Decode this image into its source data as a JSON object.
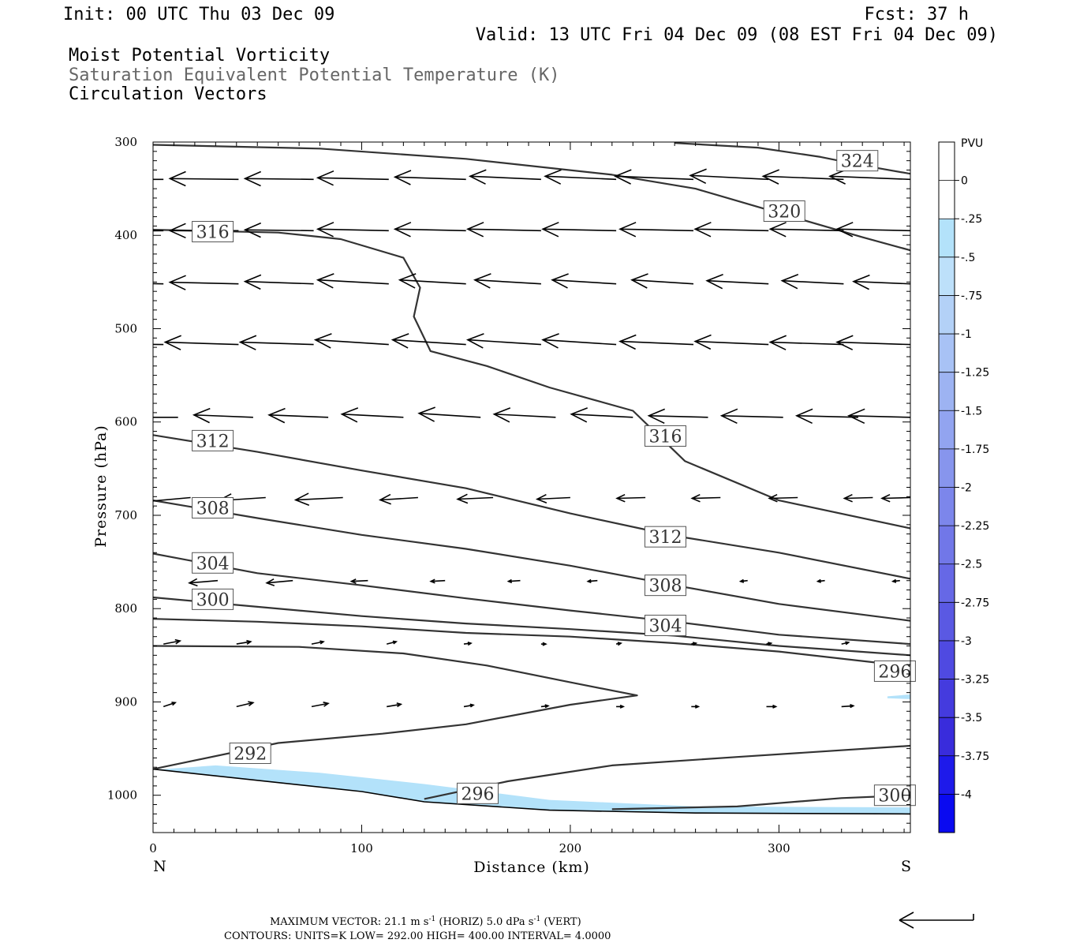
{
  "header": {
    "init": "Init: 00 UTC Thu 03 Dec 09",
    "fcst": "Fcst:   37 h",
    "valid": "Valid: 13 UTC Fri 04 Dec 09 (08 EST Fri 04 Dec 09)",
    "field1": "Moist Potential Vorticity",
    "field2": "Saturation Equivalent Potential Temperature (K)",
    "field3": "Circulation Vectors"
  },
  "footer": {
    "line1_prefix": "MAXIMUM VECTOR:  21.1 m s",
    "line1_mid": " (HORIZ)          5.0 dPa s",
    "line1_end": " (VERT)",
    "exp": "-1",
    "line2": "CONTOURS:  UNITS=K  LOW=   292.00        HIGH=   400.00        INTERVAL=     4.0000"
  },
  "colors": {
    "contour": "#333333",
    "vector": "#000000",
    "pv_fill_light": "#b3e2fa",
    "pv_fill_mid": "#a8bff5"
  },
  "chart_data": {
    "type": "cross-section",
    "xlabel": "Distance (km)",
    "ylabel": "Pressure (hPa)",
    "xlim": [
      0,
      363
    ],
    "ylim": [
      300,
      1040
    ],
    "y_reversed": true,
    "x_ticks": [
      0,
      100,
      200,
      300
    ],
    "y_ticks": [
      300,
      400,
      500,
      600,
      700,
      800,
      900,
      1000
    ],
    "x_end_labels": {
      "left": "N",
      "right": "S"
    },
    "colorbar": {
      "title": "PVU",
      "levels": [
        "0",
        "-.25",
        "-.5",
        "-.75",
        "-1",
        "-1.25",
        "-1.5",
        "-1.75",
        "-2",
        "-2.25",
        "-2.5",
        "-2.75",
        "-3",
        "-3.25",
        "-3.5",
        "-3.75",
        "-4"
      ],
      "colors": [
        "#ffffff",
        "#ffffff",
        "#b3e2fa",
        "#bde0fa",
        "#b3d1f7",
        "#a8c2f5",
        "#9db3f2",
        "#92a4f0",
        "#8795ed",
        "#7c86eb",
        "#7177e8",
        "#6668e6",
        "#5a59e3",
        "#4f4ae1",
        "#443bde",
        "#392cdc",
        "#1e1aea",
        "#0a0af0"
      ]
    },
    "ground": [
      [
        0,
        972
      ],
      [
        100,
        996
      ],
      [
        130,
        1007
      ],
      [
        190,
        1016
      ],
      [
        260,
        1019
      ],
      [
        363,
        1020
      ]
    ],
    "pv_region": [
      [
        5,
        972
      ],
      [
        30,
        968
      ],
      [
        80,
        976
      ],
      [
        130,
        988
      ],
      [
        190,
        1005
      ],
      [
        260,
        1012
      ],
      [
        363,
        1013
      ],
      [
        363,
        1020
      ],
      [
        260,
        1019
      ],
      [
        190,
        1016
      ],
      [
        130,
        1007
      ],
      [
        100,
        996
      ],
      [
        0,
        972
      ]
    ],
    "pv_region_small": [
      [
        352,
        894
      ],
      [
        363,
        892
      ],
      [
        363,
        897
      ],
      [
        352,
        896
      ]
    ],
    "contours": [
      {
        "value": "324",
        "points": [
          [
            250,
            301
          ],
          [
            290,
            306
          ],
          [
            320,
            316
          ],
          [
            340,
            325
          ],
          [
            363,
            334
          ]
        ]
      },
      {
        "value": "320",
        "points": [
          [
            0,
            303
          ],
          [
            80,
            307
          ],
          [
            150,
            318
          ],
          [
            220,
            335
          ],
          [
            260,
            350
          ],
          [
            300,
            376
          ],
          [
            340,
            402
          ],
          [
            363,
            416
          ]
        ]
      },
      {
        "value": "316",
        "points": [
          [
            0,
            394
          ],
          [
            60,
            397
          ],
          [
            90,
            404
          ],
          [
            120,
            424
          ],
          [
            128,
            456
          ],
          [
            125,
            487
          ],
          [
            133,
            524
          ],
          [
            160,
            540
          ],
          [
            190,
            563
          ],
          [
            230,
            588
          ],
          [
            255,
            642
          ],
          [
            300,
            684
          ],
          [
            363,
            714
          ]
        ]
      },
      {
        "value": "312",
        "points": [
          [
            0,
            614
          ],
          [
            50,
            632
          ],
          [
            100,
            652
          ],
          [
            150,
            671
          ],
          [
            200,
            698
          ],
          [
            250,
            722
          ],
          [
            300,
            740
          ],
          [
            363,
            768
          ]
        ]
      },
      {
        "value": "308",
        "points": [
          [
            0,
            684
          ],
          [
            50,
            703
          ],
          [
            100,
            721
          ],
          [
            150,
            736
          ],
          [
            200,
            754
          ],
          [
            250,
            775
          ],
          [
            300,
            795
          ],
          [
            363,
            813
          ]
        ]
      },
      {
        "value": "304",
        "points": [
          [
            0,
            741
          ],
          [
            50,
            762
          ],
          [
            100,
            775
          ],
          [
            150,
            789
          ],
          [
            200,
            802
          ],
          [
            250,
            814
          ],
          [
            300,
            828
          ],
          [
            363,
            838
          ]
        ]
      },
      {
        "value": "300",
        "points": [
          [
            0,
            788
          ],
          [
            50,
            798
          ],
          [
            100,
            808
          ],
          [
            150,
            816
          ],
          [
            200,
            822
          ],
          [
            250,
            829
          ],
          [
            300,
            840
          ],
          [
            363,
            850
          ]
        ]
      },
      {
        "value": "296a",
        "points": [
          [
            0,
            811
          ],
          [
            50,
            814
          ],
          [
            100,
            819
          ],
          [
            150,
            826
          ],
          [
            200,
            830
          ],
          [
            250,
            837
          ],
          [
            300,
            846
          ],
          [
            363,
            862
          ]
        ]
      },
      {
        "value": "296",
        "points": [
          [
            0,
            840
          ],
          [
            70,
            841
          ],
          [
            120,
            848
          ],
          [
            160,
            861
          ],
          [
            200,
            879
          ],
          [
            232,
            893
          ],
          [
            200,
            903
          ],
          [
            150,
            924
          ],
          [
            110,
            934
          ],
          [
            60,
            944
          ],
          [
            0,
            972
          ]
        ]
      },
      {
        "value": "296b",
        "points": [
          [
            130,
            1004
          ],
          [
            170,
            985
          ],
          [
            220,
            968
          ],
          [
            280,
            959
          ],
          [
            363,
            947
          ]
        ]
      },
      {
        "value": "300b",
        "points": [
          [
            220,
            1015
          ],
          [
            280,
            1012
          ],
          [
            330,
            1003
          ],
          [
            363,
            1000
          ]
        ]
      }
    ],
    "contour_labels": [
      {
        "text": "324",
        "x": 327,
        "y": 320
      },
      {
        "text": "320",
        "x": 292,
        "y": 374
      },
      {
        "text": "316",
        "x": 18,
        "y": 396
      },
      {
        "text": "316",
        "x": 235,
        "y": 615
      },
      {
        "text": "312",
        "x": 18,
        "y": 620
      },
      {
        "text": "312",
        "x": 235,
        "y": 723
      },
      {
        "text": "308",
        "x": 18,
        "y": 692
      },
      {
        "text": "308",
        "x": 235,
        "y": 775
      },
      {
        "text": "304",
        "x": 18,
        "y": 751
      },
      {
        "text": "304",
        "x": 235,
        "y": 818
      },
      {
        "text": "300",
        "x": 18,
        "y": 790
      },
      {
        "text": "296",
        "x": 345,
        "y": 867
      },
      {
        "text": "292",
        "x": 36,
        "y": 955
      },
      {
        "text": "296",
        "x": 145,
        "y": 998
      },
      {
        "text": "300",
        "x": 345,
        "y": 1000
      }
    ],
    "vectors": [
      {
        "p": 340,
        "x": [
          5,
          41,
          77,
          113,
          150,
          186,
          222,
          259,
          295,
          331,
          363
        ],
        "u": [
          -29,
          -29,
          -29,
          -30,
          -30,
          -30,
          -30,
          -33,
          -33,
          -34,
          -34
        ],
        "v": [
          0,
          1,
          1,
          2,
          3,
          4,
          4,
          4,
          5,
          4,
          4
        ]
      },
      {
        "p": 395,
        "x": [
          5,
          41,
          77,
          113,
          150,
          186,
          222,
          259,
          295,
          331,
          363
        ],
        "u": [
          -27,
          -29,
          -29,
          -30,
          -30,
          -31,
          -31,
          -31,
          -31,
          -31,
          -31
        ],
        "v": [
          -1,
          0,
          1,
          2,
          2,
          2,
          2,
          2,
          2,
          2,
          2
        ]
      },
      {
        "p": 452,
        "x": [
          5,
          41,
          77,
          113,
          150,
          186,
          222,
          259,
          295,
          331,
          363
        ],
        "u": [
          -29,
          -29,
          -29,
          -30,
          -28,
          -28,
          -27,
          -26,
          -26,
          -26,
          -24
        ],
        "v": [
          2,
          2,
          3,
          5,
          5,
          5,
          5,
          5,
          4,
          4,
          3
        ]
      },
      {
        "p": 517,
        "x": [
          5,
          41,
          77,
          113,
          150,
          186,
          222,
          259,
          295,
          331,
          363
        ],
        "u": [
          -31,
          -31,
          -31,
          -31,
          -31,
          -31,
          -31,
          -31,
          -31,
          -31,
          -31
        ],
        "v": [
          1,
          3,
          3,
          6,
          6,
          6,
          6,
          4,
          4,
          3,
          3
        ]
      },
      {
        "p": 595,
        "x": [
          12,
          48,
          84,
          120,
          157,
          193,
          230,
          266,
          302,
          338,
          363
        ],
        "u": [
          -25,
          -25,
          -25,
          -26,
          -26,
          -26,
          -26,
          -25,
          -26,
          -26,
          -26
        ],
        "v": [
          0,
          3,
          3,
          4,
          5,
          4,
          4,
          2,
          2,
          2,
          2
        ]
      },
      {
        "p": 681,
        "x": [
          18,
          54,
          91,
          127,
          163,
          200,
          236,
          272,
          309,
          345,
          363
        ],
        "u": [
          -22,
          -20,
          -20,
          -16,
          -15,
          -14,
          -12,
          -12,
          -12,
          -12,
          -12
        ],
        "v": [
          -6,
          -4,
          -3,
          -3,
          -2,
          -2,
          -1,
          -1,
          -1,
          -1,
          -1
        ]
      },
      {
        "p": 770,
        "x": [
          31,
          67,
          103,
          140,
          176,
          213,
          249,
          285,
          322,
          358
        ],
        "u": [
          -12,
          -11,
          -7,
          -6,
          -5,
          -4,
          -4,
          -3,
          -3,
          -3
        ],
        "v": [
          -3,
          -3,
          -1,
          -1,
          -1,
          -1,
          -1,
          -1,
          -1,
          -1
        ]
      },
      {
        "p": 838,
        "x": [
          5,
          40,
          76,
          112,
          149,
          186,
          222,
          258,
          294,
          330
        ],
        "u": [
          7,
          6,
          5,
          4,
          3,
          2,
          2,
          2,
          2,
          3
        ],
        "v": [
          4,
          3,
          3,
          3,
          1,
          0,
          1,
          1,
          1,
          2
        ]
      },
      {
        "p": 905,
        "x": [
          5,
          40,
          76,
          112,
          149,
          186,
          222,
          258,
          294,
          330
        ],
        "u": [
          5,
          7,
          7,
          6,
          4,
          3,
          3,
          3,
          4,
          5
        ],
        "v": [
          5,
          5,
          4,
          3,
          2,
          1,
          0,
          0,
          0,
          1
        ]
      }
    ]
  }
}
